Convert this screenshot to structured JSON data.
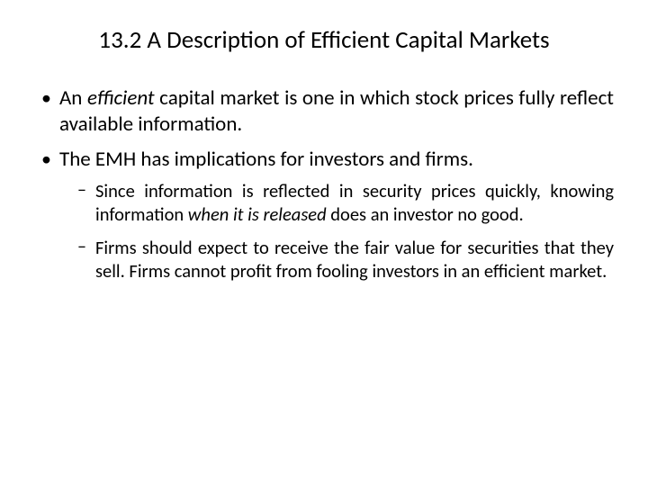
{
  "slide": {
    "title": "13.2 A Description of Efficient Capital Markets",
    "title_fontsize": 27,
    "body_fontsize_l1": 23,
    "body_fontsize_l2": 20.5,
    "background_color": "#ffffff",
    "text_color": "#000000",
    "font_family": "Calibri",
    "bullets": [
      {
        "runs": [
          {
            "text": "An "
          },
          {
            "text": "efficient",
            "italic": true
          },
          {
            "text": " capital market is one in which stock prices fully reflect available information."
          }
        ]
      },
      {
        "runs": [
          {
            "text": "The EMH has implications for investors and firms."
          }
        ],
        "sub": [
          {
            "runs": [
              {
                "text": "Since information is reflected in security prices quickly, knowing information "
              },
              {
                "text": "when it is released",
                "italic": true
              },
              {
                "text": " does an investor no good."
              }
            ]
          },
          {
            "runs": [
              {
                "text": "Firms should expect to receive the fair value for securities that they sell. Firms cannot profit from fooling investors in an efficient market."
              }
            ]
          }
        ]
      }
    ]
  }
}
